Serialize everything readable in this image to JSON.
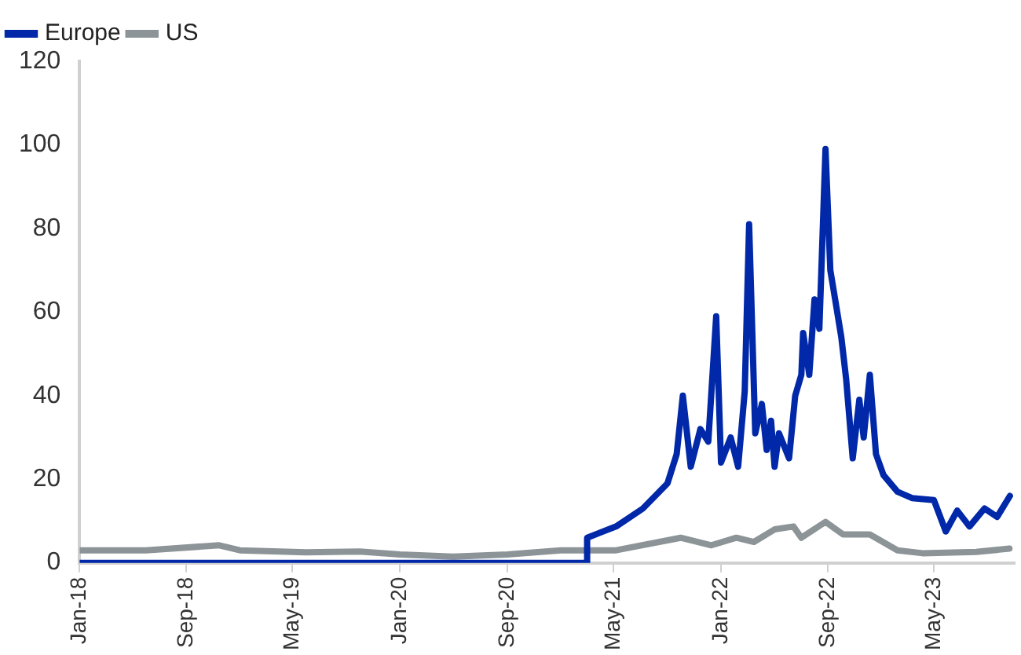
{
  "chart_data": {
    "type": "line",
    "legend": "top left",
    "grid": false,
    "marker": "none",
    "line_style": "solid",
    "xlim": [
      "2018-01-01",
      "2023-11-01"
    ],
    "xticks": [
      {
        "value": "2018-01-01",
        "label": "Jan-18"
      },
      {
        "value": "2018-09-01",
        "label": "Sep-18"
      },
      {
        "value": "2019-05-01",
        "label": "May-19"
      },
      {
        "value": "2020-01-01",
        "label": "Jan-20"
      },
      {
        "value": "2020-09-01",
        "label": "Sep-20"
      },
      {
        "value": "2021-05-01",
        "label": "May-21"
      },
      {
        "value": "2022-01-01",
        "label": "Jan-22"
      },
      {
        "value": "2022-09-01",
        "label": "Sep-22"
      },
      {
        "value": "2023-05-01",
        "label": "May-23"
      }
    ],
    "ylim": [
      0,
      120
    ],
    "yticks": [
      0,
      20,
      40,
      60,
      80,
      100,
      120
    ],
    "series": [
      {
        "name": "Europe",
        "color": "#0028a8",
        "x": [
          "2018-01-01",
          "2021-02-28",
          "2021-03-02",
          "2021-05-07",
          "2021-07-07",
          "2021-09-01",
          "2021-09-22",
          "2021-10-06",
          "2021-10-24",
          "2021-11-15",
          "2021-12-03",
          "2021-12-21",
          "2022-01-01",
          "2022-01-23",
          "2022-02-09",
          "2022-02-24",
          "2022-03-06",
          "2022-03-20",
          "2022-04-04",
          "2022-04-15",
          "2022-04-25",
          "2022-05-03",
          "2022-05-13",
          "2022-06-05",
          "2022-06-19",
          "2022-07-03",
          "2022-07-07",
          "2022-07-21",
          "2022-08-02",
          "2022-08-13",
          "2022-08-27",
          "2022-09-07",
          "2022-09-18",
          "2022-10-02",
          "2022-10-13",
          "2022-10-28",
          "2022-11-12",
          "2022-11-22",
          "2022-12-06",
          "2022-12-20",
          "2023-01-06",
          "2023-02-07",
          "2023-03-12",
          "2023-05-01",
          "2023-05-28",
          "2023-06-23",
          "2023-07-21",
          "2023-08-24",
          "2023-09-22",
          "2023-10-21"
        ],
        "values": [
          0,
          0,
          6,
          8.7,
          13,
          19,
          26,
          40,
          23,
          32,
          29,
          59,
          24,
          30,
          23,
          41,
          81,
          31,
          38,
          27,
          34,
          23,
          31,
          25,
          40,
          45,
          55,
          45,
          63,
          56,
          99,
          70,
          63,
          54,
          44,
          25,
          39,
          30,
          45,
          26,
          21,
          17,
          15.5,
          15,
          7.5,
          12.5,
          8.7,
          13,
          11,
          16
        ]
      },
      {
        "name": "US",
        "color": "#8c9497",
        "x": [
          "2018-01-01",
          "2018-06-01",
          "2018-11-15",
          "2019-01-01",
          "2019-06-01",
          "2019-10-01",
          "2020-01-01",
          "2020-05-01",
          "2020-09-01",
          "2021-01-01",
          "2021-05-07",
          "2021-10-01",
          "2021-12-10",
          "2022-02-05",
          "2022-03-17",
          "2022-05-03",
          "2022-06-15",
          "2022-07-03",
          "2022-08-27",
          "2022-10-06",
          "2022-12-06",
          "2023-02-07",
          "2023-04-05",
          "2023-08-05",
          "2023-10-20"
        ],
        "values": [
          3,
          3,
          4.2,
          3,
          2.5,
          2.7,
          2,
          1.5,
          2,
          3,
          3,
          6,
          4.2,
          6,
          5,
          8,
          8.7,
          6,
          9.8,
          6.8,
          6.8,
          3,
          2.3,
          2.6,
          3.4
        ]
      }
    ]
  }
}
